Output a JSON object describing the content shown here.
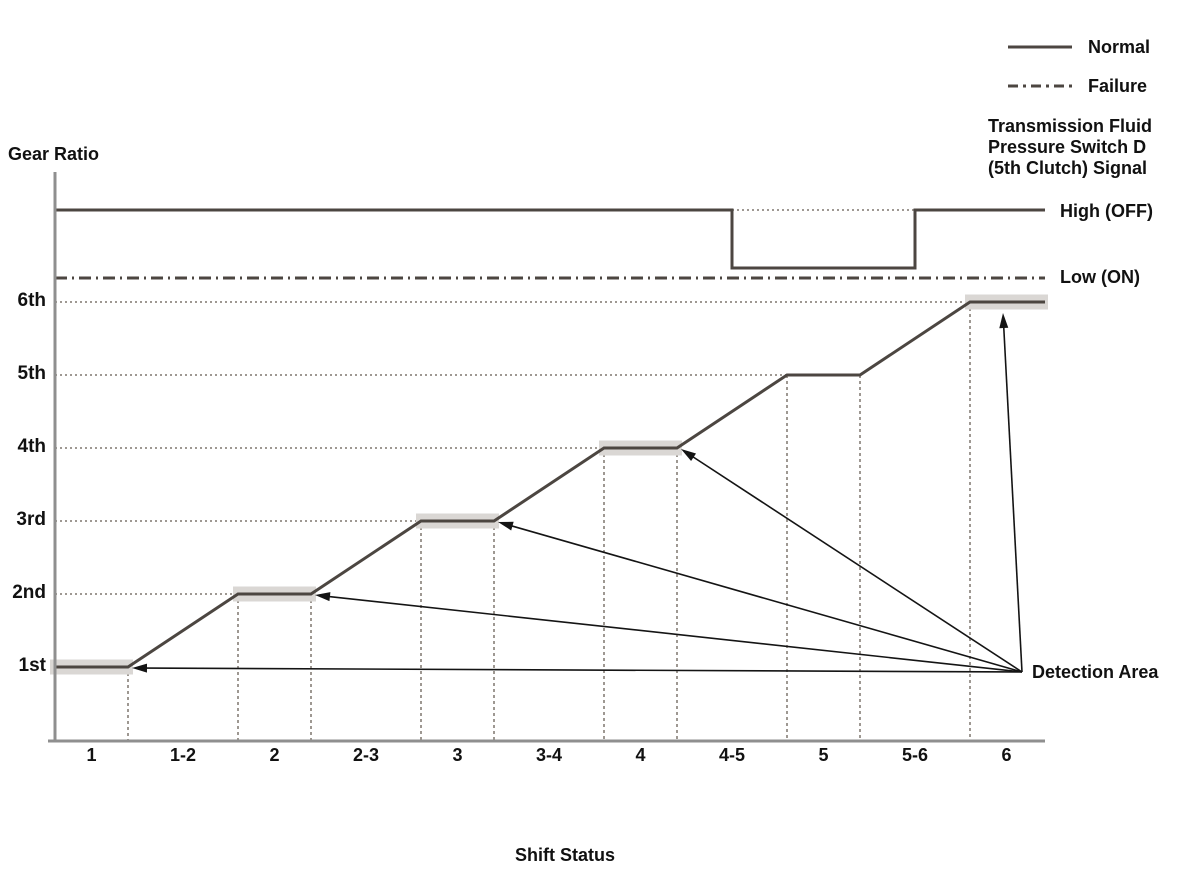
{
  "colors": {
    "line_dark": "#4c4641",
    "axis_gray": "#8f8f8f",
    "grid_gray": "#9e9892",
    "band_gray": "#dad7d4",
    "arrow_black": "#141414",
    "text_black": "#111111",
    "background": "#ffffff"
  },
  "chart_data": {
    "type": "line",
    "title": "",
    "xlabel": "Shift Status",
    "ylabel": "Gear Ratio",
    "x_categories": [
      "1",
      "1-2",
      "2",
      "2-3",
      "3",
      "3-4",
      "4",
      "4-5",
      "5",
      "5-6",
      "6"
    ],
    "y_categories": [
      "1st",
      "2nd",
      "3rd",
      "4th",
      "5th",
      "6th"
    ],
    "signal_levels": [
      "High (OFF)",
      "Low (ON)"
    ],
    "grid": "dotted horizontal guide line at each gear level; dashed vertical guide lines at the ends of each flat gear segment",
    "legend": {
      "position": "top-right",
      "entries": [
        "Normal",
        "Failure"
      ],
      "styles": [
        "solid",
        "dash-dot"
      ]
    },
    "annotations": {
      "signal_title_lines": [
        "Transmission Fluid",
        "Pressure Switch D",
        "(5th Clutch) Signal"
      ]
    },
    "detection_areas": {
      "label": "Detection Area",
      "gears": [
        "1st",
        "2nd",
        "3rd",
        "4th",
        "6th"
      ],
      "note": "gray highlighted bands on the flat gear-ratio segments, each pointed at by an arrow radiating from the Detection Area label"
    },
    "series": [
      {
        "name": "Gear Ratio",
        "line_style": "solid",
        "steps": [
          {
            "shift_status": "1",
            "gear": "1st"
          },
          {
            "shift_status": "2",
            "gear": "2nd"
          },
          {
            "shift_status": "3",
            "gear": "3rd"
          },
          {
            "shift_status": "4",
            "gear": "4th"
          },
          {
            "shift_status": "5",
            "gear": "5th"
          },
          {
            "shift_status": "6",
            "gear": "6th"
          }
        ],
        "ramp_during": [
          "1-2",
          "2-3",
          "3-4",
          "4-5",
          "5-6"
        ]
      },
      {
        "name": "Normal",
        "line_style": "solid",
        "signal": "Transmission Fluid Pressure Switch D (5th Clutch) Signal",
        "levels": [
          {
            "from": "start",
            "to": "middle of 4-5",
            "value": "High (OFF)"
          },
          {
            "from": "middle of 4-5",
            "to": "middle of 5-6",
            "value": "Low (ON)"
          },
          {
            "from": "middle of 5-6",
            "to": "end",
            "value": "High (OFF)"
          }
        ],
        "low_between": {
          "from_mid_of": "4-5",
          "to_mid_of": "5-6"
        },
        "dip_bridge": "dotted line continues at High (OFF) level across the dip"
      },
      {
        "name": "Failure",
        "line_style": "dash-dot",
        "signal": "Transmission Fluid Pressure Switch D (5th Clutch) Signal",
        "levels": [
          {
            "from": "start",
            "to": "end",
            "value": "Low (ON)"
          }
        ]
      }
    ]
  }
}
